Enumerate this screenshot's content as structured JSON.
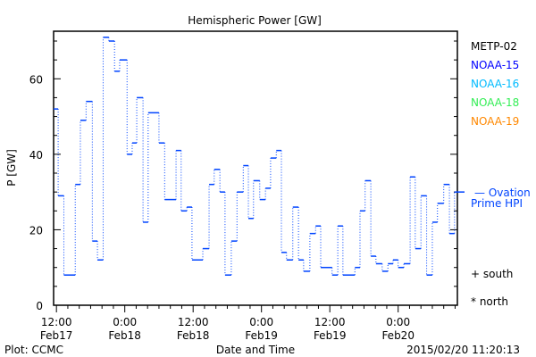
{
  "chart_data": {
    "type": "line",
    "title": "Hemispheric Power [GW]",
    "xlabel": "Date and Time",
    "ylabel": "P [GW]",
    "ylim": [
      0,
      72.6
    ],
    "xlim_hours_since_feb17_0000": [
      11.5,
      82.4
    ],
    "yticks": [
      0,
      20,
      40,
      60
    ],
    "xticks": [
      {
        "hour": 12,
        "label1": "12:00",
        "label2": "Feb17"
      },
      {
        "hour": 24,
        "label1": "0:00",
        "label2": "Feb18"
      },
      {
        "hour": 36,
        "label1": "12:00",
        "label2": "Feb18"
      },
      {
        "hour": 48,
        "label1": "0:00",
        "label2": "Feb19"
      },
      {
        "hour": 60,
        "label1": "12:00",
        "label2": "Feb19"
      },
      {
        "hour": 72,
        "label1": "0:00",
        "label2": "Feb20"
      }
    ],
    "series": [
      {
        "name": "NOAA-15",
        "color": "#0044ff",
        "step": true,
        "x": [
          11.5,
          12.3,
          13.3,
          15.3,
          16.2,
          17.2,
          18.3,
          19.2,
          20.2,
          21.2,
          22.2,
          23.1,
          24.4,
          25.3,
          26.1,
          27.2,
          28.1,
          30.0,
          31.0,
          33.0,
          33.9,
          34.9,
          35.8,
          37.7,
          38.8,
          39.7,
          40.7,
          41.6,
          42.7,
          43.7,
          44.8,
          45.7,
          46.6,
          47.7,
          48.7,
          49.6,
          50.6,
          51.5,
          52.4,
          53.5,
          54.5,
          55.4,
          56.5,
          57.5,
          58.4,
          60.4,
          61.4,
          62.3,
          64.4,
          65.3,
          66.2,
          67.2,
          68.1,
          69.2,
          70.2,
          71.1,
          72.0,
          73.0,
          74.1,
          75.0,
          76.0,
          77.0,
          78.0,
          78.9,
          80.0,
          81.0,
          81.9
        ],
        "values": [
          52,
          29,
          8,
          32,
          49,
          54,
          17,
          12,
          71,
          70,
          62,
          65,
          40,
          43,
          55,
          22,
          51,
          43,
          28,
          41,
          25,
          26,
          12,
          15,
          32,
          36,
          30,
          8,
          17,
          30,
          37,
          23,
          33,
          28,
          31,
          39,
          41,
          14,
          12,
          26,
          12,
          9,
          19,
          21,
          10,
          8,
          21,
          8,
          10,
          25,
          33,
          13,
          11,
          9,
          11,
          12,
          10,
          11,
          34,
          15,
          29,
          8,
          22,
          27,
          32,
          19,
          30
        ],
        "end": 82.4
      }
    ],
    "current_value": 30,
    "legend": {
      "position": "right",
      "satellites": [
        {
          "label": "METP-02",
          "color": "#000000"
        },
        {
          "label": "NOAA-15",
          "color": "#0000ff"
        },
        {
          "label": "NOAA-16",
          "color": "#00bbff"
        },
        {
          "label": "NOAA-18",
          "color": "#33ee55"
        },
        {
          "label": "NOAA-19",
          "color": "#ff8800"
        }
      ],
      "ovation_line1": "— Ovation",
      "ovation_line2": "Prime HPI",
      "ovation_color": "#0044ff",
      "south": "+ south",
      "north": "* north"
    }
  },
  "footer": {
    "left": "Plot: CCMC",
    "center": "Date and Time",
    "right": "2015/02/20 11:20:13"
  }
}
